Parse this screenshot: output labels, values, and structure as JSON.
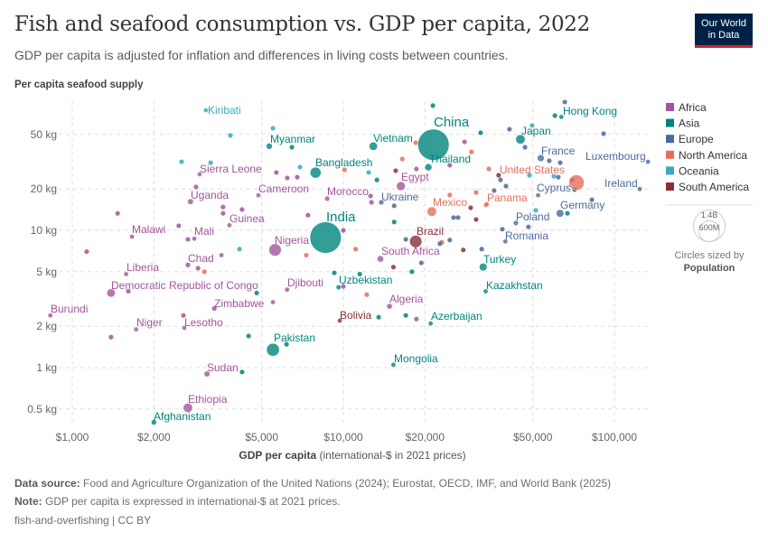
{
  "header": {
    "title": "Fish and seafood consumption vs. GDP per capita, 2022",
    "subtitle": "GDP per capita is adjusted for inflation and differences in living costs between countries.",
    "logo_line1": "Our World",
    "logo_line2": "in Data"
  },
  "footer": {
    "source_label": "Data source:",
    "source_text": "Food and Agriculture Organization of the United Nations (2024); Eurostat, OECD, IMF, and World Bank (2025)",
    "note_label": "Note:",
    "note_text": "GDP per capita is expressed in international-$ at 2021 prices.",
    "license": "fish-and-overfishing | CC BY"
  },
  "chart_data": {
    "type": "scatter",
    "title": "Fish and seafood consumption vs. GDP per capita, 2022",
    "ylabel": "Per capita seafood supply",
    "xlabel_bold": "GDP per capita",
    "xlabel_rest": " (international-$ in 2021 prices)",
    "xscale": "log",
    "yscale": "log",
    "xlim": [
      800,
      134000
    ],
    "ylim": [
      0.39,
      87
    ],
    "xticks": [
      {
        "v": 1000,
        "label": "$1,000"
      },
      {
        "v": 2000,
        "label": "$2,000"
      },
      {
        "v": 5000,
        "label": "$5,000"
      },
      {
        "v": 10000,
        "label": "$10,000"
      },
      {
        "v": 20000,
        "label": "$20,000"
      },
      {
        "v": 50000,
        "label": "$50,000"
      },
      {
        "v": 100000,
        "label": "$100,000"
      }
    ],
    "yticks": [
      {
        "v": 0.5,
        "label": "0.5 kg"
      },
      {
        "v": 1,
        "label": "1 kg"
      },
      {
        "v": 2,
        "label": "2 kg"
      },
      {
        "v": 5,
        "label": "5 kg"
      },
      {
        "v": 10,
        "label": "10 kg"
      },
      {
        "v": 20,
        "label": "20 kg"
      },
      {
        "v": 50,
        "label": "50 kg"
      }
    ],
    "grid": true,
    "legend_position": "right",
    "regions": [
      {
        "name": "Africa",
        "color": "#a2559c"
      },
      {
        "name": "Asia",
        "color": "#00847e"
      },
      {
        "name": "Europe",
        "color": "#4c6a9c"
      },
      {
        "name": "North America",
        "color": "#e56e5a"
      },
      {
        "name": "Oceania",
        "color": "#38aaba"
      },
      {
        "name": "South America",
        "color": "#883039"
      }
    ],
    "size_legend": {
      "large": "1.4B",
      "small": "600M",
      "caption": "Circles sized by",
      "variable": "Population"
    },
    "labeled": [
      {
        "name": "Kiribati",
        "gdp": 3110,
        "kg": 75,
        "pop": 0.13,
        "region": "Oceania"
      },
      {
        "name": "Myanmar",
        "gdp": 5330,
        "kg": 41,
        "pop": 54,
        "region": "Asia"
      },
      {
        "name": "Bangladesh",
        "gdp": 7900,
        "kg": 26.3,
        "pop": 171,
        "region": "Asia"
      },
      {
        "name": "Sierra Leone",
        "gdp": 2950,
        "kg": 25.6,
        "pop": 8.6,
        "region": "Africa"
      },
      {
        "name": "Uganda",
        "gdp": 2730,
        "kg": 16.2,
        "pop": 47,
        "region": "Africa"
      },
      {
        "name": "Cameroon",
        "gdp": 4860,
        "kg": 18,
        "pop": 28,
        "region": "Africa"
      },
      {
        "name": "Morocco",
        "gdp": 8720,
        "kg": 17,
        "pop": 37,
        "region": "Africa"
      },
      {
        "name": "India",
        "gdp": 8600,
        "kg": 8.86,
        "pop": 1417,
        "region": "Asia"
      },
      {
        "name": "Malawi",
        "gdp": 1660,
        "kg": 9,
        "pop": 20,
        "region": "Africa"
      },
      {
        "name": "Mali",
        "gdp": 2820,
        "kg": 8.7,
        "pop": 23,
        "region": "Africa"
      },
      {
        "name": "Guinea",
        "gdp": 3800,
        "kg": 10.9,
        "pop": 14,
        "region": "Africa"
      },
      {
        "name": "Nigeria",
        "gdp": 5600,
        "kg": 7.2,
        "pop": 218,
        "region": "Africa"
      },
      {
        "name": "Chad",
        "gdp": 3550,
        "kg": 6.6,
        "pop": 18,
        "region": "Africa"
      },
      {
        "name": "Liberia",
        "gdp": 1580,
        "kg": 4.8,
        "pop": 5.3,
        "region": "Africa"
      },
      {
        "name": "Democratic Republic of Congo",
        "gdp": 1390,
        "kg": 3.5,
        "pop": 99,
        "region": "Africa"
      },
      {
        "name": "Djibouti",
        "gdp": 6200,
        "kg": 3.7,
        "pop": 1.1,
        "region": "Africa"
      },
      {
        "name": "Zimbabwe",
        "gdp": 5500,
        "kg": 3.0,
        "pop": 16,
        "region": "Africa"
      },
      {
        "name": "Burundi",
        "gdp": 830,
        "kg": 2.4,
        "pop": 13,
        "region": "Africa"
      },
      {
        "name": "Niger",
        "gdp": 1720,
        "kg": 1.9,
        "pop": 26,
        "region": "Africa"
      },
      {
        "name": "Lesotho",
        "gdp": 2590,
        "kg": 1.95,
        "pop": 2.3,
        "region": "Africa"
      },
      {
        "name": "Pakistan",
        "gdp": 5500,
        "kg": 1.35,
        "pop": 236,
        "region": "Asia"
      },
      {
        "name": "Sudan",
        "gdp": 3140,
        "kg": 0.9,
        "pop": 47,
        "region": "Africa"
      },
      {
        "name": "Ethiopia",
        "gdp": 2670,
        "kg": 0.51,
        "pop": 123,
        "region": "Africa"
      },
      {
        "name": "Afghanistan",
        "gdp": 2000,
        "kg": 0.4,
        "pop": 41,
        "region": "Asia"
      },
      {
        "name": "Bolivia",
        "gdp": 9700,
        "kg": 2.2,
        "pop": 12,
        "region": "South America"
      },
      {
        "name": "Uzbekistan",
        "gdp": 9600,
        "kg": 3.85,
        "pop": 35,
        "region": "Asia"
      },
      {
        "name": "Vietnam",
        "gdp": 12900,
        "kg": 41,
        "pop": 98,
        "region": "Asia"
      },
      {
        "name": "China",
        "gdp": 21500,
        "kg": 42,
        "pop": 1412,
        "region": "Asia"
      },
      {
        "name": "Thailand",
        "gdp": 20600,
        "kg": 28.8,
        "pop": 72,
        "region": "Asia"
      },
      {
        "name": "Egypt",
        "gdp": 16300,
        "kg": 21,
        "pop": 111,
        "region": "Africa"
      },
      {
        "name": "Ukraine",
        "gdp": 13800,
        "kg": 16,
        "pop": 39,
        "region": "Europe"
      },
      {
        "name": "Mexico",
        "gdp": 21200,
        "kg": 13.7,
        "pop": 128,
        "region": "North America"
      },
      {
        "name": "Brazil",
        "gdp": 18500,
        "kg": 8.3,
        "pop": 215,
        "region": "South America"
      },
      {
        "name": "South Africa",
        "gdp": 13700,
        "kg": 6.2,
        "pop": 60,
        "region": "Africa"
      },
      {
        "name": "Algeria",
        "gdp": 14800,
        "kg": 2.8,
        "pop": 45,
        "region": "Africa"
      },
      {
        "name": "Azerbaijan",
        "gdp": 21000,
        "kg": 2.1,
        "pop": 10,
        "region": "Asia"
      },
      {
        "name": "Mongolia",
        "gdp": 15300,
        "kg": 1.05,
        "pop": 3.4,
        "region": "Asia"
      },
      {
        "name": "Kazakhstan",
        "gdp": 33500,
        "kg": 3.6,
        "pop": 19.6,
        "region": "Asia"
      },
      {
        "name": "Turkey",
        "gdp": 32800,
        "kg": 5.4,
        "pop": 85,
        "region": "Asia"
      },
      {
        "name": "Romania",
        "gdp": 39600,
        "kg": 8.3,
        "pop": 19,
        "region": "Europe"
      },
      {
        "name": "Poland",
        "gdp": 43300,
        "kg": 11.3,
        "pop": 38,
        "region": "Europe"
      },
      {
        "name": "Panama",
        "gdp": 33800,
        "kg": 15.5,
        "pop": 4.4,
        "region": "North America"
      },
      {
        "name": "United States",
        "gdp": 72500,
        "kg": 22.3,
        "pop": 333,
        "region": "North America"
      },
      {
        "name": "Cyprus",
        "gdp": 52300,
        "kg": 18,
        "pop": 1.3,
        "region": "Europe"
      },
      {
        "name": "Germany",
        "gdp": 63000,
        "kg": 13.3,
        "pop": 84,
        "region": "Europe"
      },
      {
        "name": "Ireland",
        "gdp": 124000,
        "kg": 20,
        "pop": 5,
        "region": "Europe"
      },
      {
        "name": "Luxembourg",
        "gdp": 133000,
        "kg": 31.6,
        "pop": 0.65,
        "region": "Europe"
      },
      {
        "name": "France",
        "gdp": 53500,
        "kg": 33.6,
        "pop": 68,
        "region": "Europe"
      },
      {
        "name": "Japan",
        "gdp": 45000,
        "kg": 46,
        "pop": 125,
        "region": "Asia"
      },
      {
        "name": "Hong Kong",
        "gdp": 63700,
        "kg": 67,
        "pop": 7.3,
        "region": "Asia"
      }
    ],
    "unlabeled": [
      [
        5500,
        55.4,
        "Oceania"
      ],
      [
        3830,
        49.1,
        "Oceania"
      ],
      [
        6460,
        40.3,
        "Asia"
      ],
      [
        2530,
        31.6,
        "Oceania"
      ],
      [
        3240,
        31.1,
        "Oceania"
      ],
      [
        6920,
        28.9,
        "Oceania"
      ],
      [
        5660,
        26.4,
        "Africa"
      ],
      [
        6210,
        24.1,
        "Africa"
      ],
      [
        6760,
        24.4,
        "Africa"
      ],
      [
        10100,
        27.6,
        "North America"
      ],
      [
        2860,
        20.7,
        "Africa"
      ],
      [
        1470,
        13.3,
        "Africa"
      ],
      [
        3600,
        14.8,
        "Africa"
      ],
      [
        3600,
        13.3,
        "Africa"
      ],
      [
        4230,
        14.2,
        "Africa"
      ],
      [
        7410,
        12.9,
        "Africa"
      ],
      [
        2470,
        10.8,
        "Africa"
      ],
      [
        10000,
        10,
        "Africa"
      ],
      [
        1130,
        7,
        "Africa"
      ],
      [
        2670,
        8.6,
        "Africa"
      ],
      [
        4140,
        7.3,
        "Oceania"
      ],
      [
        7300,
        6.6,
        "North America"
      ],
      [
        11100,
        7.3,
        "North America"
      ],
      [
        2670,
        5.6,
        "Africa"
      ],
      [
        2910,
        5.3,
        "Africa"
      ],
      [
        3070,
        5,
        "North America"
      ],
      [
        1610,
        3.6,
        "Africa"
      ],
      [
        4790,
        3.5,
        "Asia"
      ],
      [
        9260,
        4.9,
        "Asia"
      ],
      [
        11500,
        4.8,
        "Asia"
      ],
      [
        10000,
        3.9,
        "Africa"
      ],
      [
        3340,
        2.7,
        "Africa"
      ],
      [
        2570,
        2.4,
        "Africa"
      ],
      [
        1390,
        1.67,
        "Africa"
      ],
      [
        4470,
        1.7,
        "Asia"
      ],
      [
        6170,
        1.48,
        "Asia"
      ],
      [
        4230,
        0.93,
        "Asia"
      ],
      [
        21400,
        81,
        "Asia"
      ],
      [
        32100,
        51.4,
        "Asia"
      ],
      [
        41000,
        54.5,
        "Europe"
      ],
      [
        49700,
        58,
        "Oceania"
      ],
      [
        65600,
        86,
        "Europe"
      ],
      [
        60300,
        68.5,
        "Asia"
      ],
      [
        91200,
        50.6,
        "Europe"
      ],
      [
        28000,
        44.1,
        "Africa"
      ],
      [
        18500,
        43.5,
        "North America"
      ],
      [
        29700,
        37.3,
        "North America"
      ],
      [
        46800,
        40.3,
        "Europe"
      ],
      [
        16500,
        33.1,
        "North America"
      ],
      [
        15600,
        27.2,
        "South America"
      ],
      [
        18600,
        28,
        "Africa"
      ],
      [
        12400,
        26.4,
        "Oceania"
      ],
      [
        24700,
        29.8,
        "Africa"
      ],
      [
        34400,
        28,
        "North America"
      ],
      [
        13300,
        23.3,
        "Asia"
      ],
      [
        37400,
        25.2,
        "South America"
      ],
      [
        38000,
        23.3,
        "Europe"
      ],
      [
        39800,
        21,
        "Europe"
      ],
      [
        36000,
        19.5,
        "Europe"
      ],
      [
        48600,
        25.2,
        "Oceania"
      ],
      [
        57500,
        32.1,
        "Europe"
      ],
      [
        63100,
        31.1,
        "Europe"
      ],
      [
        59800,
        24.8,
        "Oceania"
      ],
      [
        62100,
        24.4,
        "Europe"
      ],
      [
        69700,
        23.3,
        "Europe"
      ],
      [
        71300,
        19.8,
        "Asia"
      ],
      [
        30900,
        18.9,
        "North America"
      ],
      [
        24700,
        18.1,
        "North America"
      ],
      [
        12600,
        17.8,
        "Africa"
      ],
      [
        12700,
        16,
        "Africa"
      ],
      [
        15400,
        15.1,
        "Europe"
      ],
      [
        29500,
        14.6,
        "South America"
      ],
      [
        33600,
        15.3,
        "North America"
      ],
      [
        25500,
        12.4,
        "Europe"
      ],
      [
        26500,
        12.4,
        "Europe"
      ],
      [
        30900,
        12,
        "South America"
      ],
      [
        15400,
        11.5,
        "Asia"
      ],
      [
        82600,
        16.7,
        "Europe"
      ],
      [
        67100,
        13.3,
        "Asia"
      ],
      [
        51300,
        14,
        "Oceania"
      ],
      [
        48200,
        10.6,
        "Europe"
      ],
      [
        38600,
        10.2,
        "Europe"
      ],
      [
        17000,
        8.6,
        "Europe"
      ],
      [
        23100,
        8.2,
        "North America"
      ],
      [
        24700,
        8.5,
        "Europe"
      ],
      [
        22700,
        8,
        "Europe"
      ],
      [
        27700,
        7.2,
        "South America"
      ],
      [
        32400,
        7.3,
        "Europe"
      ],
      [
        15300,
        5.4,
        "South America"
      ],
      [
        19400,
        5.8,
        "Europe"
      ],
      [
        17900,
        5,
        "Asia"
      ],
      [
        12200,
        3.4,
        "North America"
      ],
      [
        17000,
        2.4,
        "Asia"
      ],
      [
        18600,
        2.26,
        "Africa"
      ],
      [
        13500,
        2.33,
        "Asia"
      ]
    ]
  }
}
